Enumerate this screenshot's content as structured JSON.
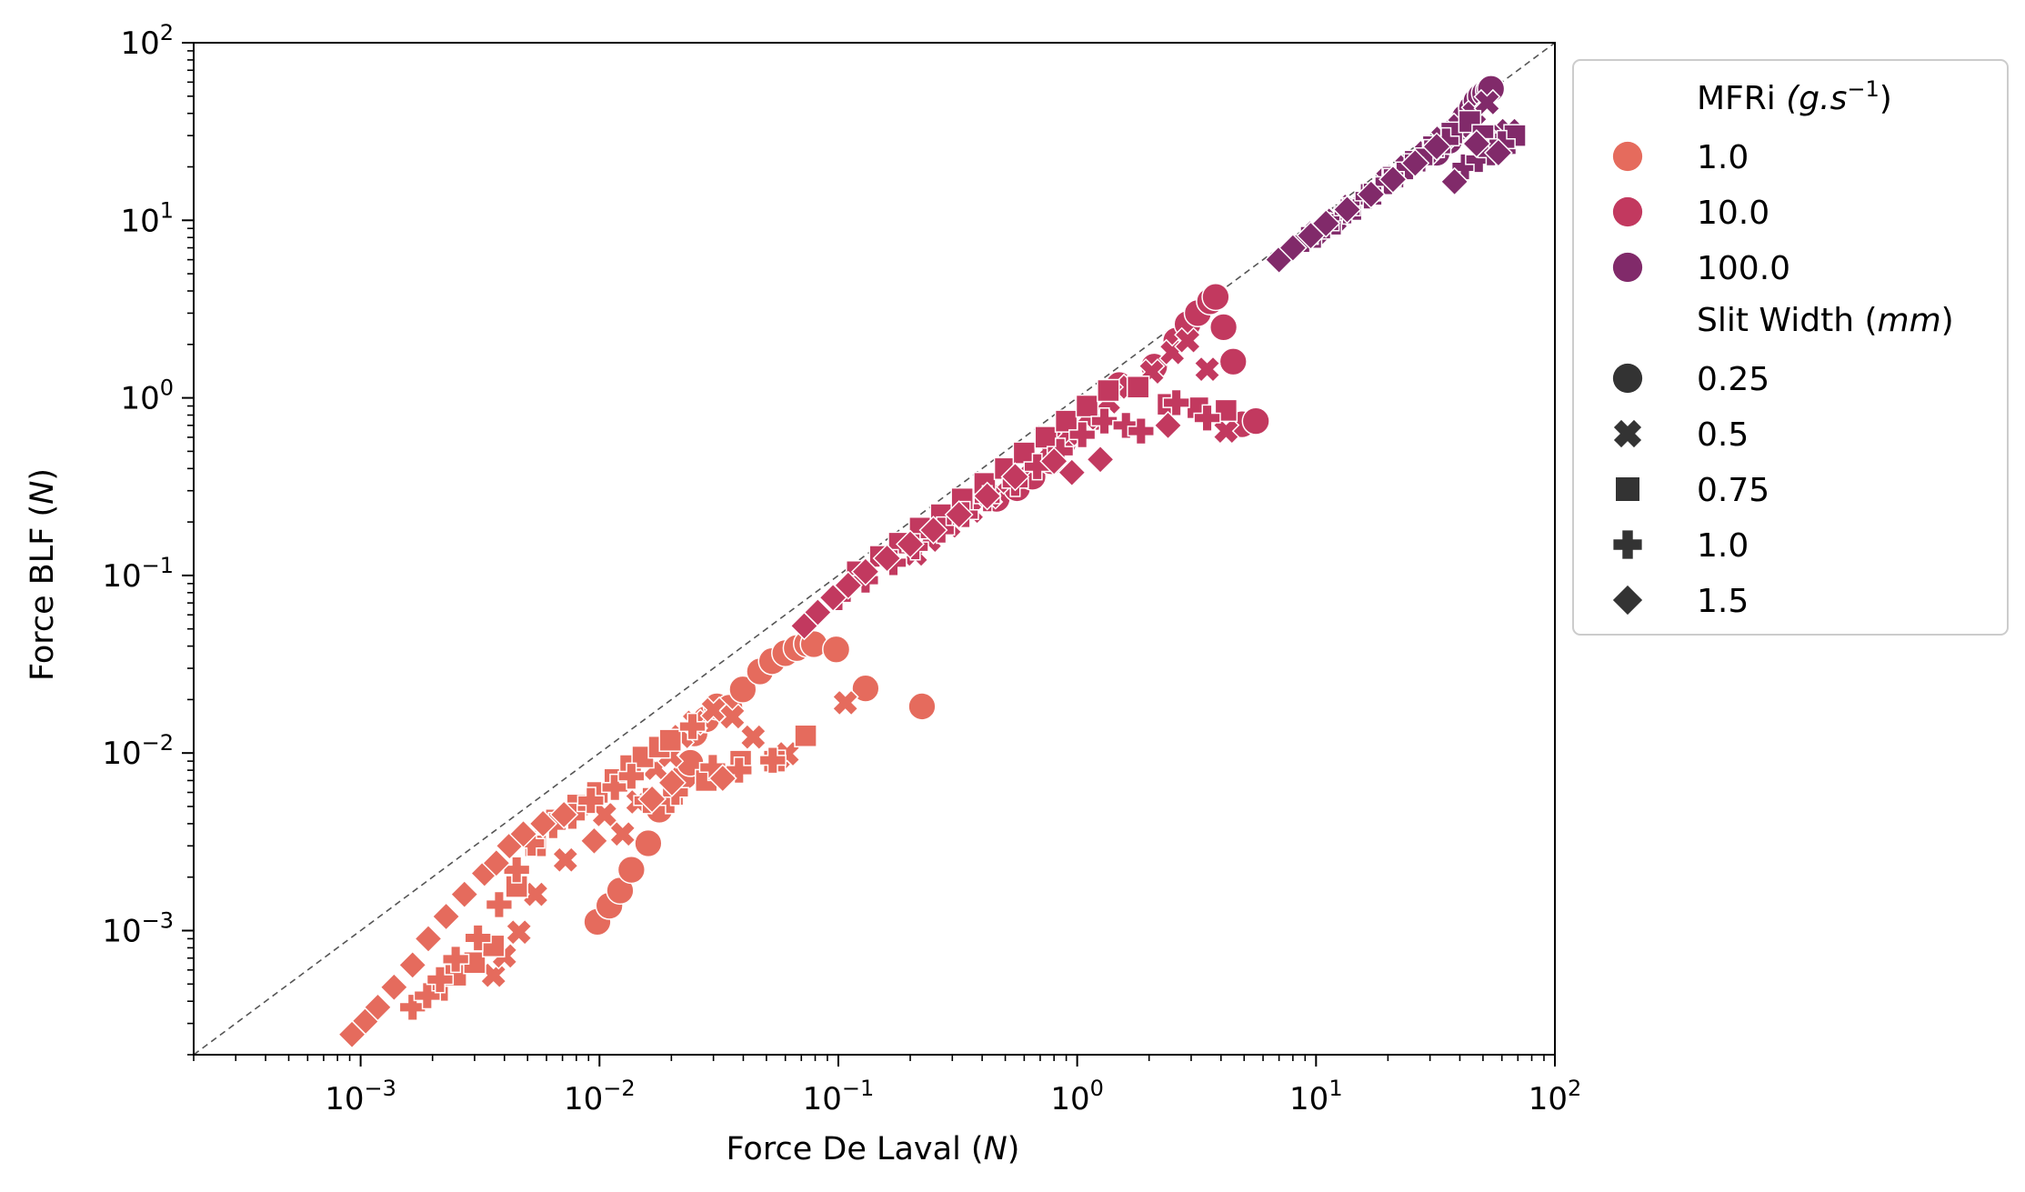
{
  "chart_data": {
    "type": "scatter",
    "title": "",
    "xlabel": "Force De Laval (N)",
    "ylabel": "Force BLF (N)",
    "xscale": "log",
    "yscale": "log",
    "xlim": [
      0.0002,
      100
    ],
    "ylim": [
      0.0002,
      100
    ],
    "x_ticks": [
      "10^-3",
      "10^-2",
      "10^-1",
      "10^0",
      "10^1",
      "10^2"
    ],
    "y_ticks": [
      "10^-3",
      "10^-2",
      "10^-1",
      "10^0",
      "10^1",
      "10^2"
    ],
    "reference_line": "y = x (dashed)",
    "legend": {
      "position": "outside-right",
      "hue_title": "MFRi",
      "hue_unit": "(g.s-1)",
      "hue_entries": [
        {
          "label": "1.0",
          "color": "#e56b5d"
        },
        {
          "label": "10.0",
          "color": "#c2395f"
        },
        {
          "label": "100.0",
          "color": "#812a6a"
        }
      ],
      "style_title": "Slit Width",
      "style_unit": "(mm)",
      "style_entries": [
        {
          "label": "0.25",
          "marker": "circle"
        },
        {
          "label": "0.5",
          "marker": "x"
        },
        {
          "label": "0.75",
          "marker": "square"
        },
        {
          "label": "1.0",
          "marker": "plus"
        },
        {
          "label": "1.5",
          "marker": "diamond"
        }
      ]
    },
    "series": [
      {
        "name": "MFRi 1.0, slit 0.25",
        "color": "#e56b5d",
        "marker": "circle",
        "x": [
          0.0098,
          0.011,
          0.0122,
          0.0136,
          0.016,
          0.0178,
          0.0226,
          0.024,
          0.025,
          0.028,
          0.031,
          0.035,
          0.0398,
          0.047,
          0.0528,
          0.06,
          0.067,
          0.074,
          0.079,
          0.098,
          0.13,
          0.224
        ],
        "y": [
          0.00112,
          0.00138,
          0.00168,
          0.0022,
          0.0031,
          0.0048,
          0.0074,
          0.0088,
          0.0129,
          0.0155,
          0.0183,
          0.018,
          0.0228,
          0.0288,
          0.0329,
          0.0365,
          0.039,
          0.0412,
          0.041,
          0.0383,
          0.0231,
          0.0183
        ]
      },
      {
        "name": "MFRi 1.0, slit 0.5",
        "color": "#e56b5d",
        "marker": "x",
        "x": [
          0.0036,
          0.004,
          0.0046,
          0.0054,
          0.0072,
          0.0105,
          0.0125,
          0.0145,
          0.0172,
          0.0198,
          0.022,
          0.025,
          0.03,
          0.036,
          0.044,
          0.056,
          0.061,
          0.107
        ],
        "y": [
          0.00056,
          0.00072,
          0.00098,
          0.0016,
          0.0025,
          0.0045,
          0.0035,
          0.0053,
          0.0082,
          0.0097,
          0.0124,
          0.0149,
          0.0175,
          0.016,
          0.0123,
          0.0093,
          0.0099,
          0.0192
        ]
      },
      {
        "name": "MFRi 1.0, slit 0.75",
        "color": "#e56b5d",
        "marker": "square",
        "x": [
          0.0021,
          0.0025,
          0.003,
          0.0036,
          0.0045,
          0.0054,
          0.0066,
          0.0081,
          0.0098,
          0.0116,
          0.0135,
          0.0152,
          0.0178,
          0.0198,
          0.028,
          0.039,
          0.054,
          0.073
        ],
        "y": [
          0.00046,
          0.00056,
          0.00066,
          0.00082,
          0.00177,
          0.003,
          0.0042,
          0.0051,
          0.006,
          0.0071,
          0.0085,
          0.0095,
          0.0108,
          0.0118,
          0.007,
          0.009,
          0.009,
          0.0125
        ]
      },
      {
        "name": "MFRi 1.0, slit 1.0",
        "color": "#e56b5d",
        "marker": "plus",
        "x": [
          0.00165,
          0.0019,
          0.00215,
          0.0025,
          0.0031,
          0.0038,
          0.0045,
          0.0052,
          0.0064,
          0.0077,
          0.0092,
          0.0116,
          0.0136,
          0.0158,
          0.0198,
          0.0208,
          0.0245,
          0.0298,
          0.0384,
          0.0531
        ],
        "y": [
          0.00037,
          0.00043,
          0.00053,
          0.00069,
          0.00091,
          0.0014,
          0.0022,
          0.0031,
          0.0039,
          0.0044,
          0.0054,
          0.0064,
          0.0074,
          0.0054,
          0.0054,
          0.006,
          0.0141,
          0.0083,
          0.008,
          0.0091
        ]
      },
      {
        "name": "MFRi 1.0, slit 1.5",
        "color": "#e56b5d",
        "marker": "diamond",
        "x": [
          0.00092,
          0.00105,
          0.00118,
          0.00138,
          0.00165,
          0.00192,
          0.00228,
          0.00272,
          0.0033,
          0.0037,
          0.0042,
          0.0048,
          0.0058,
          0.0071,
          0.0095,
          0.0166,
          0.0201,
          0.0328
        ],
        "y": [
          0.00026,
          0.00031,
          0.00037,
          0.00048,
          0.00064,
          0.0009,
          0.0012,
          0.0016,
          0.0021,
          0.0024,
          0.003,
          0.0035,
          0.004,
          0.0045,
          0.0032,
          0.0055,
          0.0068,
          0.0072
        ]
      },
      {
        "name": "MFRi 10.0, slit 0.25",
        "color": "#c2395f",
        "marker": "circle",
        "x": [
          0.46,
          0.56,
          0.65,
          0.78,
          0.87,
          1.2,
          1.5,
          2.1,
          2.6,
          2.9,
          3.2,
          3.6,
          3.8,
          4.1,
          4.5,
          4.9,
          5.6
        ],
        "y": [
          0.27,
          0.31,
          0.36,
          0.44,
          0.55,
          0.78,
          1.18,
          1.5,
          2.1,
          2.6,
          3.0,
          3.5,
          3.7,
          2.5,
          1.6,
          0.71,
          0.74
        ]
      },
      {
        "name": "MFRi 10.0, slit 0.5",
        "color": "#c2395f",
        "marker": "x",
        "x": [
          0.21,
          0.24,
          0.29,
          0.36,
          0.43,
          0.52,
          0.64,
          0.76,
          0.92,
          1.1,
          1.35,
          1.66,
          2.05,
          2.5,
          2.9,
          3.5,
          4.2
        ],
        "y": [
          0.132,
          0.158,
          0.19,
          0.23,
          0.28,
          0.34,
          0.42,
          0.51,
          0.63,
          0.77,
          0.95,
          1.15,
          1.4,
          1.8,
          2.1,
          1.45,
          0.65
        ]
      },
      {
        "name": "MFRi 10.0, slit 0.75",
        "color": "#c2395f",
        "marker": "square",
        "x": [
          0.12,
          0.15,
          0.18,
          0.22,
          0.27,
          0.33,
          0.41,
          0.5,
          0.6,
          0.74,
          0.9,
          1.1,
          1.35,
          1.8,
          2.4,
          3.2,
          4.2
        ],
        "y": [
          0.105,
          0.128,
          0.152,
          0.185,
          0.22,
          0.27,
          0.33,
          0.4,
          0.49,
          0.6,
          0.74,
          0.9,
          1.1,
          1.15,
          0.92,
          0.88,
          0.85
        ]
      },
      {
        "name": "MFRi 10.0, slit 1.0",
        "color": "#c2395f",
        "marker": "plus",
        "x": [
          0.1,
          0.13,
          0.17,
          0.21,
          0.27,
          0.34,
          0.42,
          0.55,
          0.68,
          0.85,
          1.05,
          1.3,
          1.6,
          1.85,
          2.6,
          3.5
        ],
        "y": [
          0.075,
          0.094,
          0.118,
          0.145,
          0.18,
          0.22,
          0.27,
          0.33,
          0.41,
          0.5,
          0.62,
          0.74,
          0.7,
          0.65,
          0.94,
          0.77
        ]
      },
      {
        "name": "MFRi 10.0, slit 1.5",
        "color": "#c2395f",
        "marker": "diamond",
        "x": [
          0.072,
          0.082,
          0.095,
          0.11,
          0.13,
          0.16,
          0.2,
          0.25,
          0.32,
          0.42,
          0.55,
          0.8,
          0.95,
          1.25,
          2.4
        ],
        "y": [
          0.052,
          0.062,
          0.075,
          0.088,
          0.105,
          0.125,
          0.15,
          0.18,
          0.22,
          0.28,
          0.36,
          0.44,
          0.38,
          0.45,
          0.7
        ]
      },
      {
        "name": "MFRi 100.0, slit 0.25",
        "color": "#812a6a",
        "marker": "circle",
        "x": [
          32,
          36,
          39,
          42,
          45,
          47,
          49,
          51,
          53,
          54,
          55,
          57,
          59,
          60
        ],
        "y": [
          24,
          28,
          33,
          38,
          43,
          47,
          50,
          52,
          54,
          55,
          28,
          25,
          27,
          30
        ]
      },
      {
        "name": "MFRi 100.0, slit 0.5",
        "color": "#812a6a",
        "marker": "x",
        "x": [
          10,
          12,
          14,
          17,
          20,
          24,
          29,
          34,
          40,
          46,
          52,
          58,
          64
        ],
        "y": [
          8.5,
          10,
          12,
          14,
          17,
          20,
          24,
          29,
          34,
          40,
          46,
          28,
          32
        ]
      },
      {
        "name": "MFRi 100.0, slit 0.75",
        "color": "#812a6a",
        "marker": "square",
        "x": [
          9.5,
          11.5,
          14,
          17,
          21,
          26,
          31,
          37,
          44,
          50,
          56,
          62,
          68
        ],
        "y": [
          8,
          9.5,
          11.5,
          14,
          17.5,
          21.5,
          26,
          31,
          36,
          30,
          25,
          27,
          30
        ]
      },
      {
        "name": "MFRi 100.0, slit 1.0",
        "color": "#812a6a",
        "marker": "plus",
        "x": [
          9,
          11,
          13.5,
          16.5,
          20,
          24.5,
          29.5,
          35,
          42,
          48,
          54,
          60
        ],
        "y": [
          7.8,
          9.3,
          11.3,
          13.7,
          16.5,
          20,
          24,
          28,
          20,
          22,
          24,
          27
        ]
      },
      {
        "name": "MFRi 100.0, slit 1.5",
        "color": "#812a6a",
        "marker": "diamond",
        "x": [
          7,
          8,
          9.5,
          11,
          13.5,
          17,
          21,
          26,
          32,
          38,
          47,
          58
        ],
        "y": [
          6,
          7,
          8.2,
          9.6,
          11.5,
          14,
          17,
          21,
          26,
          16.5,
          27,
          24
        ]
      }
    ]
  }
}
